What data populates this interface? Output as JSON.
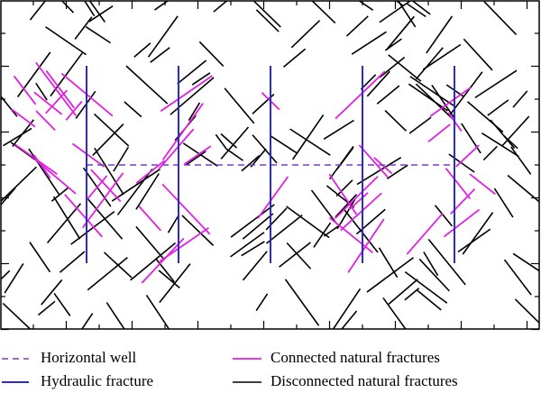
{
  "legend": {
    "items": [
      "Horizontal well",
      "Hydraulic fracture",
      "Connected natural fractures",
      "Disconnected natural fractures"
    ]
  }
}
